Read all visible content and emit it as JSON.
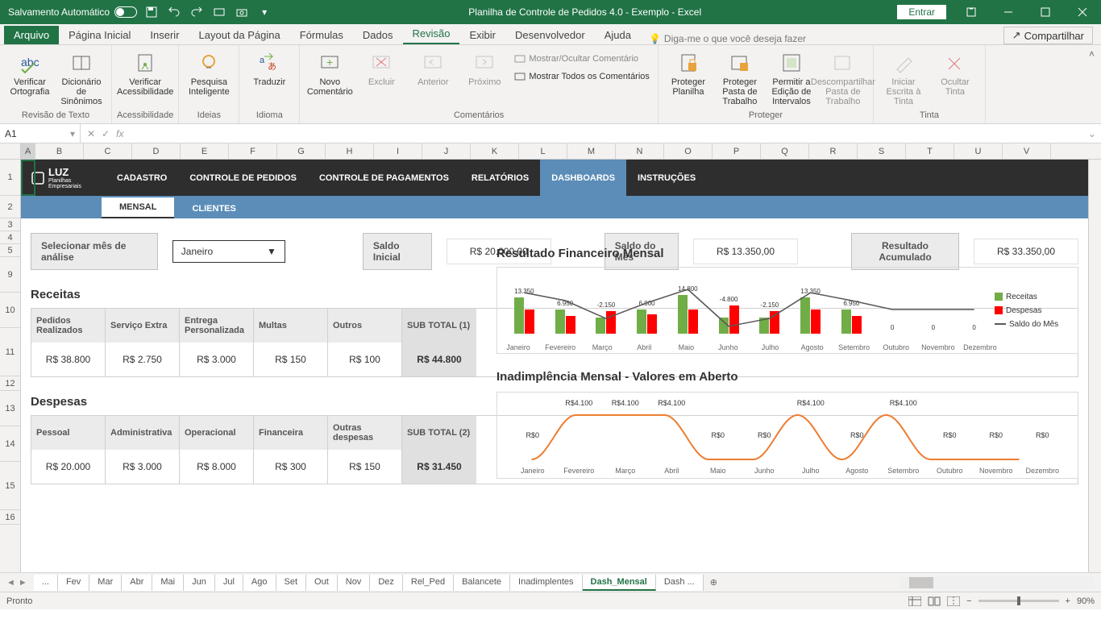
{
  "titlebar": {
    "autosave": "Salvamento Automático",
    "title": "Planilha de Controle de Pedidos 4.0 - Exemplo  -  Excel",
    "login": "Entrar"
  },
  "ribbon_tabs": [
    "Arquivo",
    "Página Inicial",
    "Inserir",
    "Layout da Página",
    "Fórmulas",
    "Dados",
    "Revisão",
    "Exibir",
    "Desenvolvedor",
    "Ajuda"
  ],
  "tellme": "Diga-me o que você deseja fazer",
  "share": "Compartilhar",
  "ribbon": {
    "g1": {
      "label": "Revisão de Texto",
      "btns": [
        "Verificar Ortografia",
        "Dicionário de Sinônimos"
      ]
    },
    "g2": {
      "label": "Acessibilidade",
      "btns": [
        "Verificar Acessibilidade"
      ]
    },
    "g3": {
      "label": "Ideias",
      "btns": [
        "Pesquisa Inteligente"
      ]
    },
    "g4": {
      "label": "Idioma",
      "btns": [
        "Traduzir"
      ]
    },
    "g5": {
      "label": "Comentários",
      "btns": [
        "Novo Comentário",
        "Excluir",
        "Anterior",
        "Próximo"
      ],
      "small": [
        "Mostrar/Ocultar Comentário",
        "Mostrar Todos os Comentários"
      ]
    },
    "g6": {
      "label": "Proteger",
      "btns": [
        "Proteger Planilha",
        "Proteger Pasta de Trabalho",
        "Permitir a Edição de Intervalos",
        "Descompartilhar Pasta de Trabalho"
      ]
    },
    "g7": {
      "label": "Tinta",
      "btns": [
        "Iniciar Escrita à Tinta",
        "Ocultar Tinta"
      ]
    }
  },
  "namebox": "A1",
  "columns": [
    "A",
    "B",
    "C",
    "D",
    "E",
    "F",
    "G",
    "H",
    "I",
    "J",
    "K",
    "L",
    "M",
    "N",
    "O",
    "P",
    "Q",
    "R",
    "S",
    "T",
    "U",
    "V"
  ],
  "rows": [
    "1",
    "2",
    "3",
    "4",
    "5",
    "9",
    "10",
    "11",
    "12",
    "13",
    "14",
    "15",
    "16"
  ],
  "app_nav": [
    "CADASTRO",
    "CONTROLE DE PEDIDOS",
    "CONTROLE DE PAGAMENTOS",
    "RELATÓRIOS",
    "DASHBOARDS",
    "INSTRUÇÕES"
  ],
  "sub_nav": [
    "MENSAL",
    "CLIENTES"
  ],
  "filter": {
    "label": "Selecionar mês de análise",
    "value": "Janeiro"
  },
  "metrics": [
    {
      "label": "Saldo Inicial",
      "value": "R$ 20.000,00"
    },
    {
      "label": "Saldo do Mês",
      "value": "R$ 13.350,00"
    },
    {
      "label": "Resultado Acumulado",
      "value": "R$ 33.350,00"
    }
  ],
  "receitas": {
    "title": "Receitas",
    "headers": [
      "Pedidos Realizados",
      "Serviço Extra",
      "Entrega Personalizada",
      "Multas",
      "Outros",
      "SUB TOTAL (1)"
    ],
    "values": [
      "R$ 38.800",
      "R$ 2.750",
      "R$ 3.000",
      "R$ 150",
      "R$ 100",
      "R$ 44.800"
    ]
  },
  "despesas": {
    "title": "Despesas",
    "headers": [
      "Pessoal",
      "Administrativa",
      "Operacional",
      "Financeira",
      "Outras despesas",
      "SUB TOTAL (2)"
    ],
    "values": [
      "R$ 20.000",
      "R$ 3.000",
      "R$ 8.000",
      "R$ 300",
      "R$ 150",
      "R$ 31.450"
    ]
  },
  "chart1": {
    "title": "Resultado Financeiro Mensal",
    "months": [
      "Janeiro",
      "Fevereiro",
      "Março",
      "Abril",
      "Maio",
      "Junho",
      "Julho",
      "Agosto",
      "Setembro",
      "Outubro",
      "Novembro",
      "Dezembro"
    ],
    "labels": [
      "13.350",
      "6.950",
      "-2.150",
      "6.000",
      "14.800",
      "-4.800",
      "-2.150",
      "13.350",
      "6.950",
      "0",
      "0",
      "0"
    ],
    "receitas": [
      45,
      30,
      20,
      30,
      48,
      20,
      20,
      45,
      30,
      0,
      0,
      0
    ],
    "despesas": [
      30,
      22,
      28,
      24,
      30,
      35,
      28,
      30,
      22,
      0,
      0,
      0
    ],
    "colors": {
      "receitas": "#70ad47",
      "despesas": "#ff0000",
      "saldo": "#595959"
    },
    "legend": [
      "Receitas",
      "Despesas",
      "Saldo do Mês"
    ]
  },
  "chart2": {
    "title": "Inadimplência Mensal - Valores em Aberto",
    "months": [
      "Janeiro",
      "Fevereiro",
      "Março",
      "Abril",
      "Maio",
      "Junho",
      "Julho",
      "Agosto",
      "Setembro",
      "Outubro",
      "Novembro",
      "Dezembro"
    ],
    "labels": [
      "R$0",
      "R$4.100",
      "R$4.100",
      "R$4.100",
      "R$0",
      "R$0",
      "R$4.100",
      "R$0",
      "R$4.100",
      "R$0",
      "R$0",
      "R$0"
    ],
    "line_color": "#ed7d31",
    "points": [
      0,
      55,
      55,
      55,
      0,
      0,
      55,
      0,
      55,
      0,
      0,
      0
    ]
  },
  "sheets": [
    "...",
    "Fev",
    "Mar",
    "Abr",
    "Mai",
    "Jun",
    "Jul",
    "Ago",
    "Set",
    "Out",
    "Nov",
    "Dez",
    "Rel_Ped",
    "Balancete",
    "Inadimplentes",
    "Dash_Mensal",
    "Dash ..."
  ],
  "status": "Pronto",
  "zoom": "90%"
}
